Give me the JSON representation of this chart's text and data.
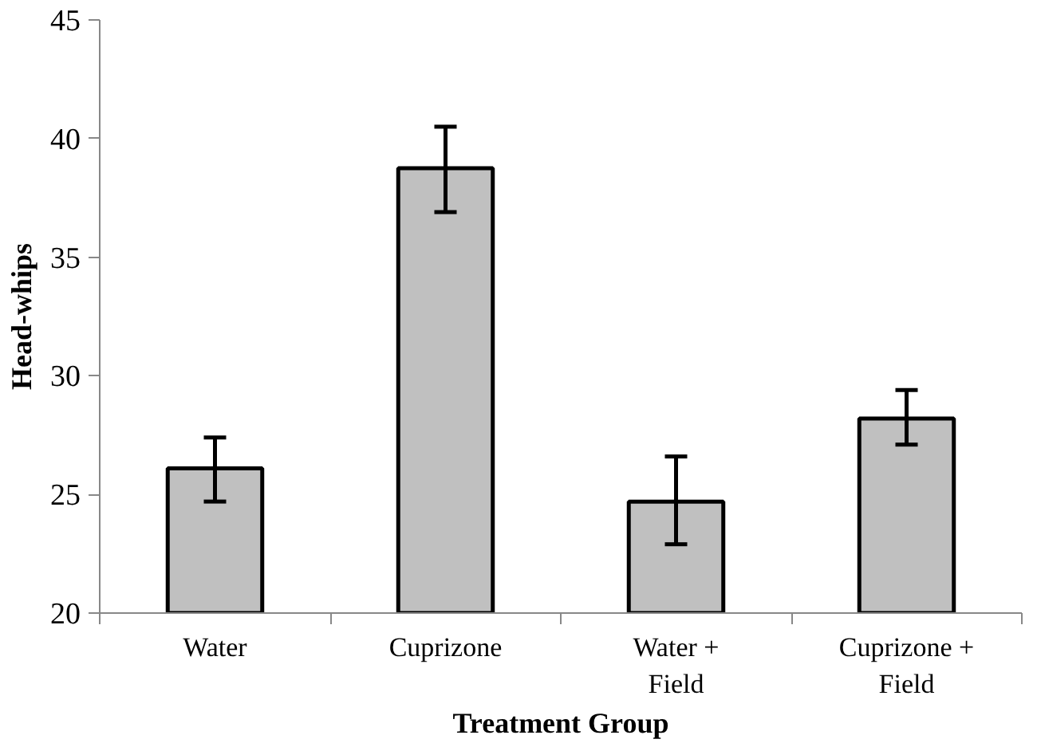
{
  "chart_data": {
    "type": "bar",
    "xlabel": "Treatment Group",
    "ylabel": "Head-whips",
    "categories": [
      "Water",
      "Cuprizone",
      "Water +\nField",
      "Cuprizone +\nField"
    ],
    "values": [
      26.1,
      38.75,
      24.7,
      28.2
    ],
    "errors": [
      [
        24.7,
        27.4
      ],
      [
        36.9,
        40.5
      ],
      [
        22.9,
        26.6
      ],
      [
        27.1,
        29.4
      ]
    ],
    "color": "#c0c0c0",
    "ylim": [
      20,
      45
    ],
    "yticks": [
      20,
      25,
      30,
      35,
      40,
      45
    ],
    "grid": false
  }
}
